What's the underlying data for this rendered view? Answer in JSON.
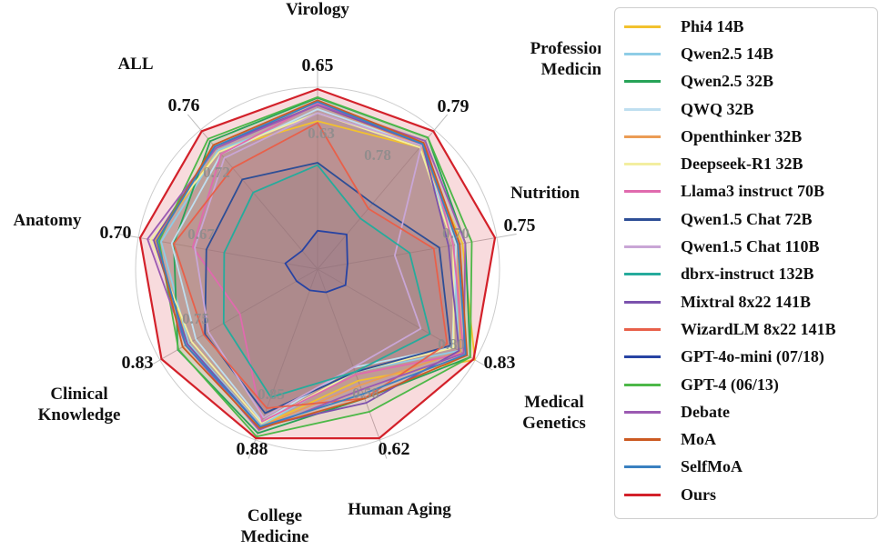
{
  "chart_data": {
    "type": "radar",
    "axes": [
      {
        "name": "Virology",
        "max_label": "0.65",
        "inner_label": "0.63",
        "range": [
          0.45,
          0.65
        ]
      },
      {
        "name": "Professional Medicine",
        "max_label": "0.79",
        "inner_label": "0.78",
        "range": [
          0.6,
          0.79
        ]
      },
      {
        "name": "Nutrition",
        "max_label": "0.75",
        "inner_label": "0.70",
        "range": [
          0.58,
          0.75
        ]
      },
      {
        "name": "Medical Genetics",
        "max_label": "0.83",
        "inner_label": "0.80",
        "range": [
          0.62,
          0.83
        ]
      },
      {
        "name": "Human Aging",
        "max_label": "0.62",
        "inner_label": "0.58",
        "range": [
          0.45,
          0.62
        ]
      },
      {
        "name": "College Medicine",
        "max_label": "0.88",
        "inner_label": "0.85",
        "range": [
          0.7,
          0.88
        ]
      },
      {
        "name": "Clinical Knowledge",
        "max_label": "0.83",
        "inner_label": "0.75",
        "range": [
          0.6,
          0.83
        ]
      },
      {
        "name": "Anatomy",
        "max_label": "0.70",
        "inner_label": "0.67",
        "range": [
          0.55,
          0.7
        ]
      },
      {
        "name": "ALL",
        "max_label": "0.76",
        "inner_label": "0.72",
        "range": [
          0.6,
          0.76
        ]
      }
    ],
    "series": [
      {
        "name": "Phi4 14B",
        "color": "#f2c12e",
        "values": [
          0.61,
          0.765,
          0.715,
          0.832,
          0.555,
          0.865,
          0.785,
          0.686,
          0.735
        ]
      },
      {
        "name": "Qwen2.5 14B",
        "color": "#8ecde6",
        "values": [
          0.62,
          0.768,
          0.705,
          0.808,
          0.545,
          0.865,
          0.785,
          0.68,
          0.735
        ]
      },
      {
        "name": "Qwen2.5 32B",
        "color": "#27a358",
        "values": [
          0.639,
          0.78,
          0.718,
          0.825,
          0.575,
          0.874,
          0.803,
          0.668,
          0.747
        ]
      },
      {
        "name": "QWQ 32B",
        "color": "#bfdff0",
        "values": [
          0.625,
          0.768,
          0.708,
          0.798,
          0.54,
          0.86,
          0.773,
          0.67,
          0.73
        ]
      },
      {
        "name": "Openthinker 32B",
        "color": "#eb9c55",
        "values": [
          0.63,
          0.768,
          0.71,
          0.81,
          0.56,
          0.866,
          0.79,
          0.685,
          0.74
        ]
      },
      {
        "name": "Deepseek-R1 32B",
        "color": "#f3eea0",
        "values": [
          0.62,
          0.765,
          0.705,
          0.8,
          0.545,
          0.862,
          0.78,
          0.69,
          0.733
        ]
      },
      {
        "name": "Llama3 instruct 70B",
        "color": "#e06aae",
        "values": [
          0.632,
          0.775,
          0.705,
          0.815,
          0.548,
          0.86,
          0.7,
          0.65,
          0.73
        ]
      },
      {
        "name": "Qwen1.5 Chat 72B",
        "color": "#2e4e96",
        "values": [
          0.558,
          0.678,
          0.69,
          0.795,
          0.545,
          0.85,
          0.758,
          0.637,
          0.697
        ]
      },
      {
        "name": "Qwen1.5 Chat  110B",
        "color": "#c9a6d6",
        "values": [
          0.62,
          0.768,
          0.642,
          0.75,
          0.54,
          0.855,
          0.752,
          0.648,
          0.725
        ]
      },
      {
        "name": "dbrx-instruct 132B",
        "color": "#26ab9c",
        "values": [
          0.555,
          0.655,
          0.658,
          0.764,
          0.545,
          0.831,
          0.727,
          0.62,
          0.68
        ]
      },
      {
        "name": "Mixtral 8x22 141B",
        "color": "#7b52ad",
        "values": [
          0.63,
          0.77,
          0.7,
          0.808,
          0.58,
          0.866,
          0.787,
          0.687,
          0.74
        ]
      },
      {
        "name": "WizardLM 8x22 141B",
        "color": "#e8604a",
        "values": [
          0.608,
          0.67,
          0.684,
          0.79,
          0.575,
          0.844,
          0.76,
          0.668,
          0.712
        ]
      },
      {
        "name": "GPT-4o-mini (07/18)",
        "color": "#2743a3",
        "values": [
          0.473,
          0.63,
          0.591,
          0.636,
          0.455,
          0.703,
          0.606,
          0.562,
          0.604
        ]
      },
      {
        "name": "GPT-4 (06/13)",
        "color": "#4db848",
        "values": [
          0.64,
          0.78,
          0.725,
          0.825,
          0.59,
          0.878,
          0.802,
          0.682,
          0.75
        ]
      },
      {
        "name": "Debate",
        "color": "#9b5ab2",
        "values": [
          0.63,
          0.775,
          0.718,
          0.815,
          0.565,
          0.87,
          0.79,
          0.693,
          0.738
        ]
      },
      {
        "name": "MoA",
        "color": "#cc5a22",
        "values": [
          0.636,
          0.772,
          0.712,
          0.82,
          0.575,
          0.868,
          0.795,
          0.684,
          0.742
        ]
      },
      {
        "name": "SelfMoA",
        "color": "#3a80c0",
        "values": [
          0.634,
          0.77,
          0.71,
          0.818,
          0.57,
          0.866,
          0.79,
          0.684,
          0.74
        ]
      },
      {
        "name": "Ours",
        "color": "#d3212a",
        "values": [
          0.65,
          0.79,
          0.75,
          0.83,
          0.62,
          0.88,
          0.83,
          0.7,
          0.76
        ]
      }
    ]
  }
}
